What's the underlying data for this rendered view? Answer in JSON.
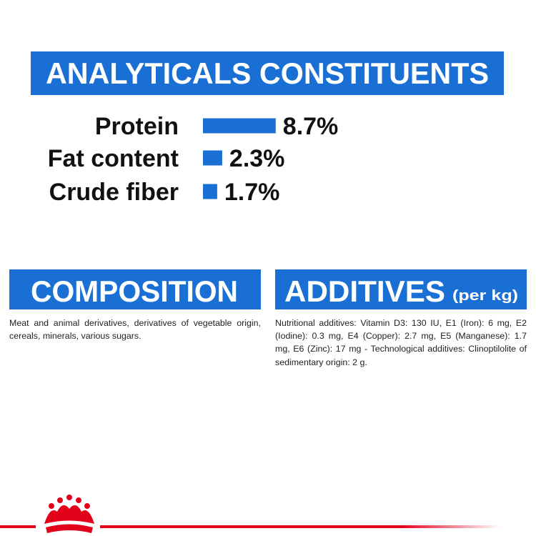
{
  "header": {
    "title": "ANALYTICALS CONSTITUENTS"
  },
  "chart_data": {
    "type": "bar",
    "categories": [
      "Protein",
      "Fat content",
      "Crude fiber"
    ],
    "values": [
      8.7,
      2.3,
      1.7
    ],
    "value_labels": [
      "8.7%",
      "2.3%",
      "1.7%"
    ],
    "color": "#1a6fd4"
  },
  "composition": {
    "title": "COMPOSITION",
    "text": "Meat and animal derivatives, derivatives of vegetable origin, cereals, minerals, various sugars."
  },
  "additives": {
    "title": "ADDITIVES",
    "unit": "(per kg)",
    "text": "Nutritional additives: Vitamin D3: 130 IU, E1 (Iron): 6 mg, E2 (Iodine): 0.3 mg, E4 (Copper): 2.7 mg, E5 (Manganese): 1.7 mg, E6 (Zinc): 17 mg - Technological additives: Clinoptilolite of sedimentary origin: 2 g."
  }
}
